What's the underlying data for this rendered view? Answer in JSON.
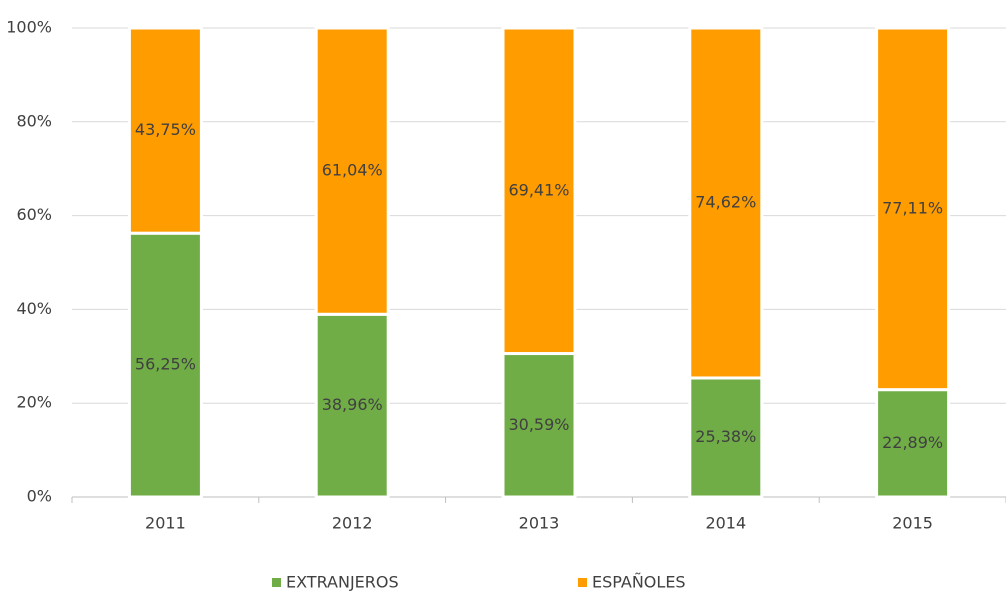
{
  "chart_data": {
    "type": "stacked_bar",
    "categories": [
      "2011",
      "2012",
      "2013",
      "2014",
      "2015"
    ],
    "series": [
      {
        "name": "EXTRANJEROS",
        "color": "#70ad47",
        "values": [
          56.25,
          38.96,
          30.59,
          25.38,
          22.89
        ],
        "value_labels": [
          "56,25%",
          "38,96%",
          "30,59%",
          "25,38%",
          "22,89%"
        ]
      },
      {
        "name": "ESPAÑOLES",
        "color": "#ff9c00",
        "values": [
          43.75,
          61.04,
          69.41,
          74.62,
          77.11
        ],
        "value_labels": [
          "43,75%",
          "61,04%",
          "69,41%",
          "74,62%",
          "77,11%"
        ]
      }
    ],
    "ylim": [
      0,
      100
    ],
    "yticks": [
      {
        "value": 0,
        "label": "0%"
      },
      {
        "value": 20,
        "label": "20%"
      },
      {
        "value": 40,
        "label": "40%"
      },
      {
        "value": 60,
        "label": "60%"
      },
      {
        "value": 80,
        "label": "80%"
      },
      {
        "value": 100,
        "label": "100%"
      }
    ],
    "grid": true,
    "legend": "bottom"
  }
}
